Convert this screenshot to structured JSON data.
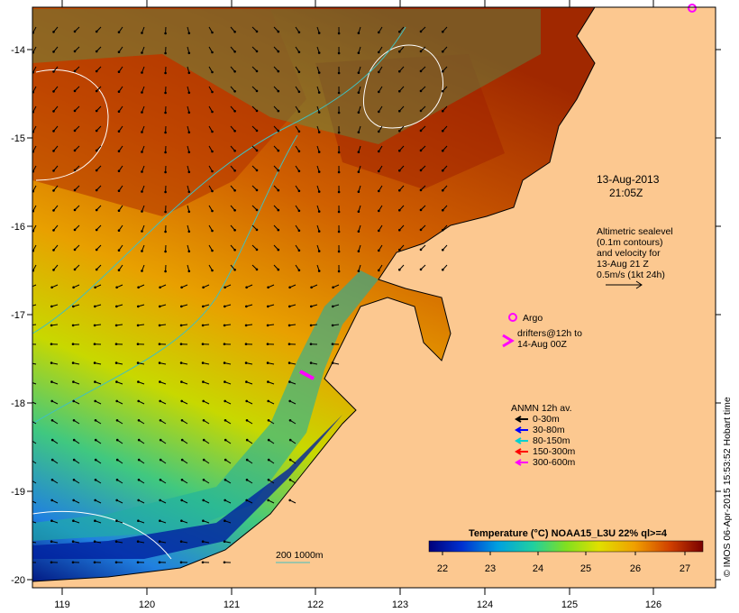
{
  "map": {
    "date": "13-Aug-2013",
    "time": "21:05Z",
    "altimetry_note": [
      "Altimetric sealevel",
      "(0.1m contours)",
      "and velocity for",
      "13-Aug 21 Z",
      "0.5m/s (1kt 24h)"
    ],
    "argo_label": "Argo",
    "drifters_label": [
      "drifters@12h to",
      "14-Aug 00Z"
    ],
    "anmn_title": "ANMN 12h av.",
    "anmn_legend": [
      {
        "label": "0-30m",
        "color": "#000000"
      },
      {
        "label": "30-80m",
        "color": "#0000ff"
      },
      {
        "label": "80-150m",
        "color": "#00d0d0"
      },
      {
        "label": "150-300m",
        "color": "#ff0000"
      },
      {
        "label": "300-600m",
        "color": "#ff00ff"
      }
    ],
    "isobath_label": "200  1000m",
    "colorbar_title": "Temperature (°C) NOAA15_L3U 22% ql>=4",
    "colorbar_ticks": [
      "22",
      "23",
      "24",
      "25",
      "26",
      "27"
    ],
    "credit": "© IMOS 06-Apr-2015 15:53:52 Hobart time",
    "lon_ticks": [
      "119",
      "120",
      "121",
      "122",
      "123",
      "124",
      "125",
      "126"
    ],
    "lat_ticks": [
      "-14",
      "-15",
      "-16",
      "-17",
      "-18",
      "-19",
      "-20"
    ],
    "colors": {
      "land": "#fcc890",
      "argo": "#ff00ff",
      "cyan_contour": "#40c0c0"
    }
  }
}
